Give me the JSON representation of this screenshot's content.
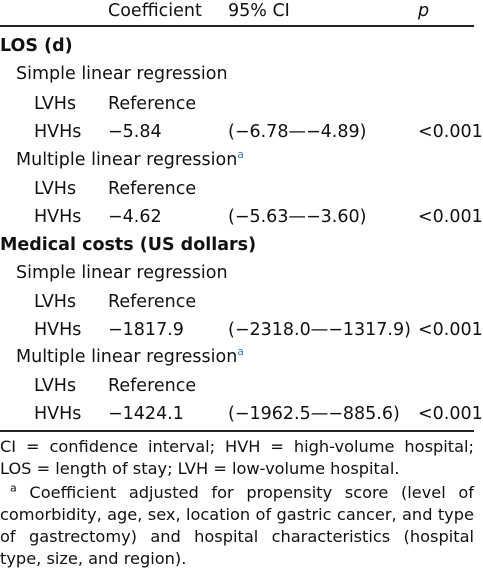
{
  "header": {
    "coefficient": "Coefficient",
    "ci": "95% CI",
    "p": "p"
  },
  "rows": [
    {
      "label": "LOS (d)"
    },
    {
      "label": "Simple linear regression"
    },
    {
      "label": "LVHs",
      "coef": "Reference"
    },
    {
      "label": "HVHs",
      "coef": "−5.84",
      "ci": "(−6.78—−4.89)",
      "p": "<0.001"
    },
    {
      "label": "Multiple linear regression",
      "sup": "a"
    },
    {
      "label": "LVHs",
      "coef": "Reference"
    },
    {
      "label": "HVHs",
      "coef": "−4.62",
      "ci": "(−5.63—−3.60)",
      "p": "<0.001"
    },
    {
      "label": "Medical costs (US dollars)"
    },
    {
      "label": "Simple linear regression"
    },
    {
      "label": "LVHs",
      "coef": "Reference"
    },
    {
      "label": "HVHs",
      "coef": "−1817.9",
      "ci": "(−2318.0—−1317.9)",
      "p": "<0.001"
    },
    {
      "label": "Multiple linear regression",
      "sup": "a"
    },
    {
      "label": "LVHs",
      "coef": "Reference"
    },
    {
      "label": "HVHs",
      "coef": "−1424.1",
      "ci": "(−1962.5—−885.6)",
      "p": "<0.001"
    }
  ],
  "footnotes": {
    "abbrev": "CI = confidence interval; HVH = high-volume hospital; LOS = length of stay; LVH = low-volume hospital.",
    "a_marker": "a",
    "a_text": "Coefficient adjusted for propensity score (level of comorbidity, age, sex, location of gastric cancer, and type of gastrectomy) and hospital characteristics (hospital type, size, and region)."
  }
}
